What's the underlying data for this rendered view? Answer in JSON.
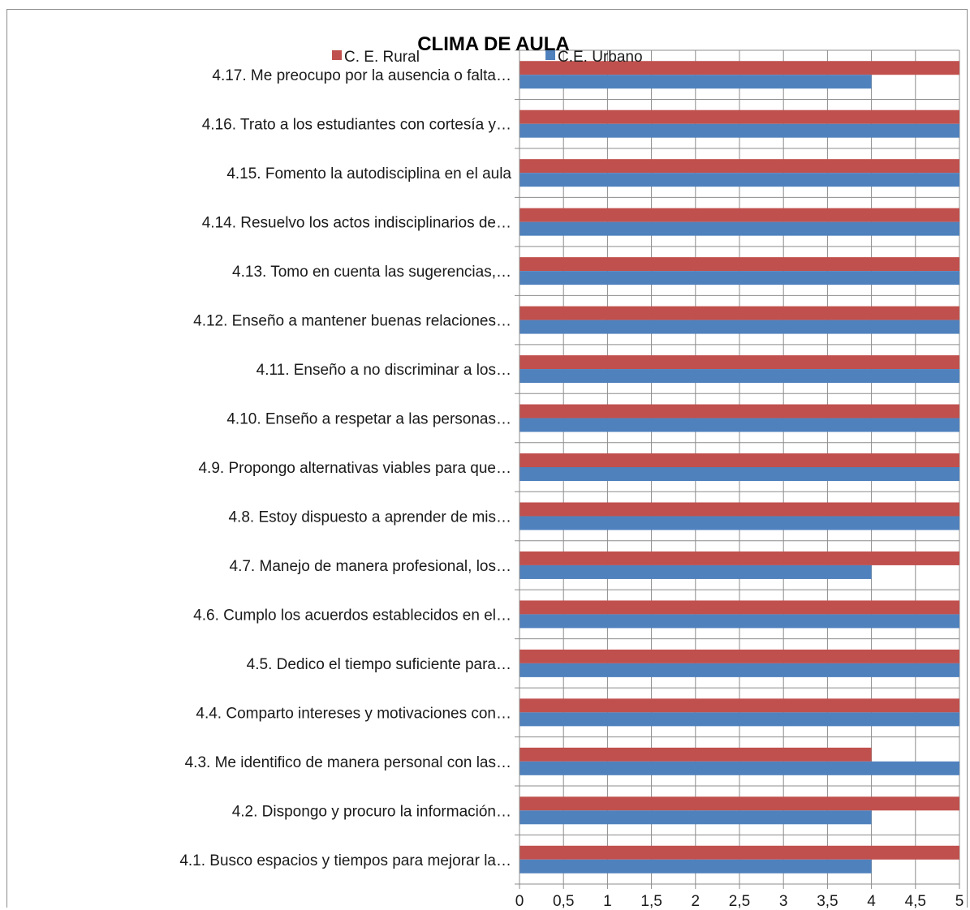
{
  "chart_data": {
    "type": "bar",
    "orientation": "horizontal",
    "title": "CLIMA DE AULA",
    "categories": [
      "4.17.   Me preocupo  por  la ausencia o falta…",
      "4.16.   Trato a los estudiantes con cortesía y…",
      "4.15.   Fomento la autodisciplina en el aula",
      "4.14.   Resuelvo los actos indisciplinarios de…",
      "4.13.   Tomo en cuenta las sugerencias,…",
      "4.12.   Enseño a mantener buenas relaciones…",
      "4.11.   Enseño a no discriminar a los…",
      "4.10.   Enseño a respetar a las personas…",
      "4.9.       Propongo alternativas viables para que…",
      "4.8.  Estoy dispuesto a aprender de mis…",
      "4.7.       Manejo de manera  profesional, los…",
      "4.6.  Cumplo los acuerdos establecidos en el…",
      "4.5.  Dedico el tiempo suficiente para…",
      "4.4.  Comparto intereses y motivaciones con…",
      "4.3.  Me identifico de manera personal con las…",
      "4.2.      Dispongo y procuro la información…",
      "4.1.  Busco espacios y tiempos para mejorar la…"
    ],
    "series": [
      {
        "name": "C. E. Rural",
        "color": "#c0504d",
        "values": [
          5,
          5,
          5,
          5,
          5,
          5,
          5,
          5,
          5,
          5,
          5,
          5,
          5,
          5,
          4,
          5,
          5
        ]
      },
      {
        "name": "C.E. Urbano",
        "color": "#4f81bd",
        "values": [
          4,
          5,
          5,
          5,
          5,
          5,
          5,
          5,
          5,
          5,
          4,
          5,
          5,
          5,
          5,
          4,
          4
        ]
      }
    ],
    "xlim": [
      0,
      5
    ],
    "xticks": [
      0,
      0.5,
      1,
      1.5,
      2,
      2.5,
      3,
      3.5,
      4,
      4.5,
      5
    ],
    "xtick_labels": [
      "0",
      "0,5",
      "1",
      "1,5",
      "2",
      "2,5",
      "3",
      "3,5",
      "4",
      "4,5",
      "5"
    ],
    "grid": true,
    "legend_position": "top"
  }
}
